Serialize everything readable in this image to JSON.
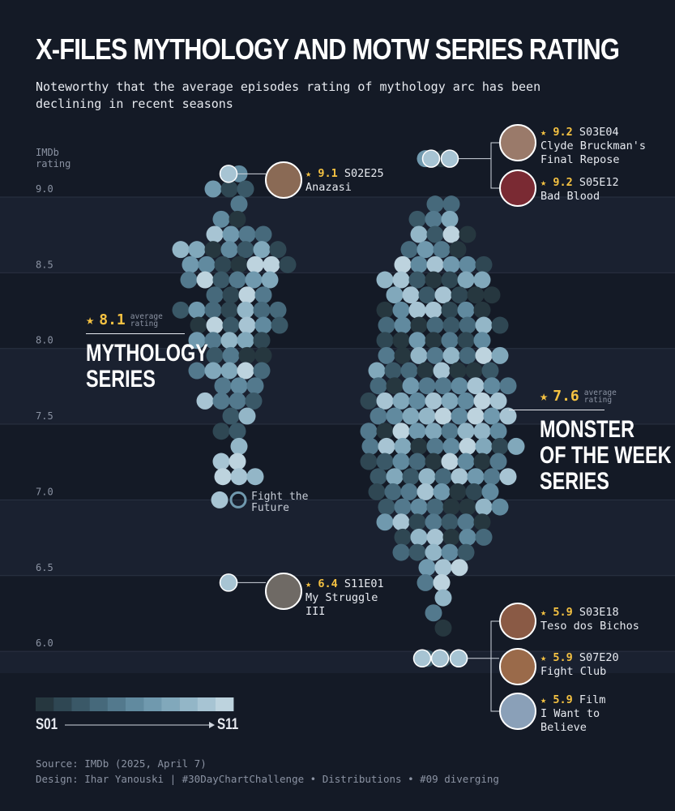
{
  "title": "X-FILES MYTHOLOGY AND MOTW SERIES RATING",
  "subtitle": [
    "Noteworthy that the average episodes rating of mythology arc has been",
    "declining in recent seasons"
  ],
  "y_axis_label": [
    "IMDb",
    "rating"
  ],
  "colors": {
    "background": "#141a26",
    "band": "#1a2130",
    "highlight": "#f5c242",
    "season_scale": [
      "#26373f",
      "#2f4753",
      "#3a5867",
      "#46697b",
      "#53798d",
      "#618a9f",
      "#7099ae",
      "#81a8bb",
      "#93b6c7",
      "#a7c4d3",
      "#bdd3de"
    ]
  },
  "chart_data": {
    "type": "scatter",
    "subtype": "beeswarm",
    "ylabel": "IMDb rating",
    "ylim": [
      5.85,
      9.15
    ],
    "y_ticks": [
      "9.0",
      "8.5",
      "8.0",
      "7.5",
      "7.0",
      "6.5",
      "6.0"
    ],
    "series": [
      {
        "name": "MYTHOLOGY SERIES",
        "average": "8.1",
        "counts_by_rating": [
          {
            "rating": 9.1,
            "count": 1
          },
          {
            "rating": 9.0,
            "count": 3
          },
          {
            "rating": 8.9,
            "count": 1
          },
          {
            "rating": 8.8,
            "count": 2
          },
          {
            "rating": 8.7,
            "count": 4
          },
          {
            "rating": 8.6,
            "count": 7
          },
          {
            "rating": 8.5,
            "count": 7
          },
          {
            "rating": 8.4,
            "count": 6
          },
          {
            "rating": 8.3,
            "count": 4
          },
          {
            "rating": 8.2,
            "count": 7
          },
          {
            "rating": 8.1,
            "count": 6
          },
          {
            "rating": 8.0,
            "count": 5
          },
          {
            "rating": 7.9,
            "count": 4
          },
          {
            "rating": 7.8,
            "count": 5
          },
          {
            "rating": 7.7,
            "count": 3
          },
          {
            "rating": 7.6,
            "count": 4
          },
          {
            "rating": 7.5,
            "count": 2
          },
          {
            "rating": 7.4,
            "count": 2
          },
          {
            "rating": 7.3,
            "count": 1
          },
          {
            "rating": 7.2,
            "count": 2
          },
          {
            "rating": 7.1,
            "count": 3
          },
          {
            "rating": 6.4,
            "count": 1
          }
        ],
        "movie": {
          "rating": 7.0,
          "label": [
            "Fight the",
            "Future"
          ]
        }
      },
      {
        "name": "MONSTER OF THE WEEK SERIES",
        "average": "7.6",
        "counts_by_rating": [
          {
            "rating": 9.2,
            "count": 2
          },
          {
            "rating": 8.9,
            "count": 2
          },
          {
            "rating": 8.8,
            "count": 3
          },
          {
            "rating": 8.7,
            "count": 4
          },
          {
            "rating": 8.6,
            "count": 4
          },
          {
            "rating": 8.5,
            "count": 6
          },
          {
            "rating": 8.4,
            "count": 7
          },
          {
            "rating": 8.3,
            "count": 7
          },
          {
            "rating": 8.2,
            "count": 7
          },
          {
            "rating": 8.1,
            "count": 8
          },
          {
            "rating": 8.0,
            "count": 7
          },
          {
            "rating": 7.9,
            "count": 8
          },
          {
            "rating": 7.8,
            "count": 8
          },
          {
            "rating": 7.7,
            "count": 9
          },
          {
            "rating": 7.6,
            "count": 9
          },
          {
            "rating": 7.5,
            "count": 9
          },
          {
            "rating": 7.4,
            "count": 9
          },
          {
            "rating": 7.3,
            "count": 10
          },
          {
            "rating": 7.2,
            "count": 9
          },
          {
            "rating": 7.1,
            "count": 9
          },
          {
            "rating": 7.0,
            "count": 8
          },
          {
            "rating": 6.9,
            "count": 8
          },
          {
            "rating": 6.8,
            "count": 7
          },
          {
            "rating": 6.7,
            "count": 6
          },
          {
            "rating": 6.6,
            "count": 5
          },
          {
            "rating": 6.5,
            "count": 3
          },
          {
            "rating": 6.4,
            "count": 2
          },
          {
            "rating": 6.3,
            "count": 1
          },
          {
            "rating": 6.2,
            "count": 1
          },
          {
            "rating": 6.1,
            "count": 1
          },
          {
            "rating": 5.9,
            "count": 3
          }
        ]
      }
    ],
    "annotations": [
      {
        "series": "MYTHOLOGY SERIES",
        "rating": "9.1",
        "episode": "S02E25",
        "name": [
          "Anazasi"
        ]
      },
      {
        "series": "MYTHOLOGY SERIES",
        "rating": "6.4",
        "episode": "S11E01",
        "name": [
          "My Struggle",
          "III"
        ]
      },
      {
        "series": "MONSTER OF THE WEEK SERIES",
        "rating": "9.2",
        "episode": "S03E04",
        "name": [
          "Clyde Bruckman's",
          "Final Repose"
        ]
      },
      {
        "series": "MONSTER OF THE WEEK SERIES",
        "rating": "9.2",
        "episode": "S05E12",
        "name": [
          "Bad Blood"
        ]
      },
      {
        "series": "MONSTER OF THE WEEK SERIES",
        "rating": "5.9",
        "episode": "S03E18",
        "name": [
          "Teso dos Bichos"
        ]
      },
      {
        "series": "MONSTER OF THE WEEK SERIES",
        "rating": "5.9",
        "episode": "S07E20",
        "name": [
          "Fight Club"
        ]
      },
      {
        "series": "MONSTER OF THE WEEK SERIES",
        "rating": "5.9",
        "episode": "Film",
        "name": [
          "I Want to",
          "Believe"
        ]
      }
    ],
    "legend": {
      "from": "S01",
      "to": "S11",
      "placement": "bottom-left"
    }
  },
  "avg_caption": [
    "average",
    "rating"
  ],
  "series_labels": {
    "mythology": {
      "average": "8.1",
      "name": [
        "MYTHOLOGY",
        "SERIES"
      ]
    },
    "motw": {
      "average": "7.6",
      "name": [
        "MONSTER",
        "OF THE WEEK",
        "SERIES"
      ]
    }
  },
  "annotations_text": {
    "anasazi": {
      "rating": "9.1",
      "episode": "S02E25",
      "name": [
        "Anazasi"
      ]
    },
    "struggle": {
      "rating": "6.4",
      "episode": "S11E01",
      "name": [
        "My Struggle",
        "III"
      ]
    },
    "clyde": {
      "rating": "9.2",
      "episode": "S03E04",
      "name": [
        "Clyde Bruckman's",
        "Final Repose"
      ]
    },
    "badblood": {
      "rating": "9.2",
      "episode": "S05E12",
      "name": [
        "Bad Blood"
      ]
    },
    "teso": {
      "rating": "5.9",
      "episode": "S03E18",
      "name": [
        "Teso dos Bichos"
      ]
    },
    "fightclub": {
      "rating": "5.9",
      "episode": "S07E20",
      "name": [
        "Fight Club"
      ]
    },
    "film": {
      "rating": "5.9",
      "episode": "Film",
      "name": [
        "I Want to",
        "Believe"
      ]
    },
    "fightfuture": [
      "Fight the",
      "Future"
    ]
  },
  "footer": {
    "source": "Source: IMDb (2025, April 7)",
    "design": "Design: Ihar Yanouski | #30DayChartChallenge • Distributions • #09 diverging"
  },
  "legend_labels": {
    "from": "S01",
    "to": "S11"
  }
}
